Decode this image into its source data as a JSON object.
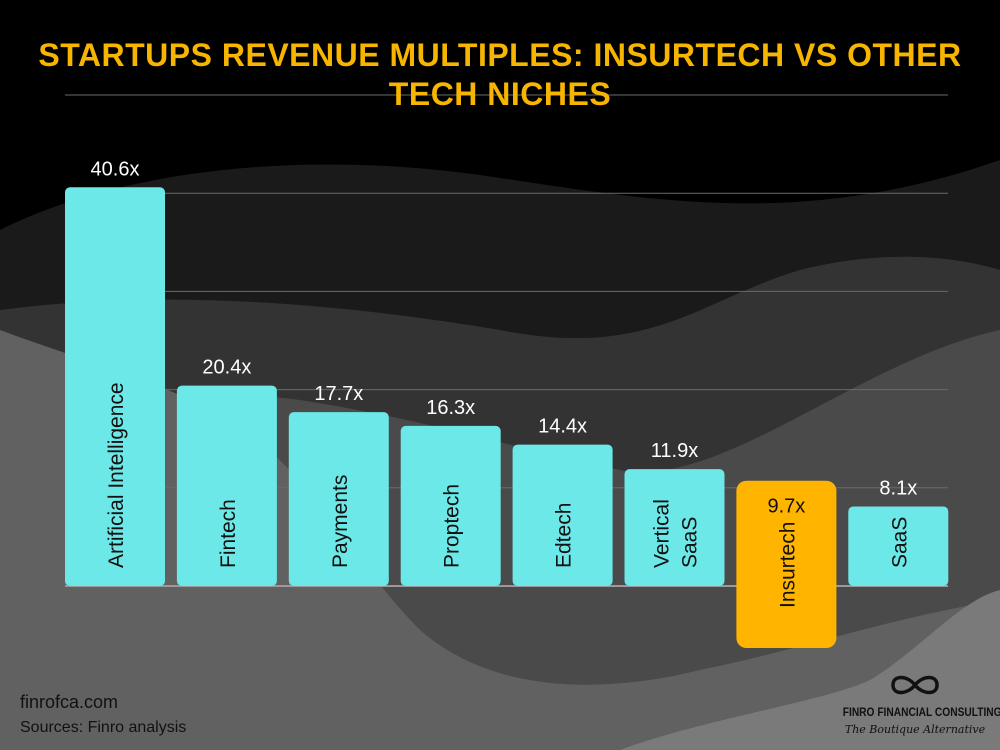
{
  "title": "STARTUPS REVENUE MULTIPLES: INSURTECH VS OTHER TECH NICHES",
  "footer": {
    "website": "finrofca.com",
    "sources": "Sources: Finro analysis"
  },
  "logo": {
    "name": "FINRO FINANCIAL CONSULTING",
    "tagline": "The Boutique Alternative",
    "icon": "infinity-icon"
  },
  "colors": {
    "bar": "#6ce8e8",
    "highlight": "#ffb400",
    "title": "#f7b500"
  },
  "chart_data": {
    "type": "bar",
    "title": "STARTUPS REVENUE MULTIPLES: INSURTECH VS OTHER TECH NICHES",
    "categories": [
      "Artificial Intelligence",
      "Fintech",
      "Payments",
      "Proptech",
      "Edtech",
      "Vertical SaaS",
      "Insurtech",
      "SaaS"
    ],
    "values": [
      40.6,
      20.4,
      17.7,
      16.3,
      14.4,
      11.9,
      9.7,
      8.1
    ],
    "labels": [
      "40.6x",
      "20.4x",
      "17.7x",
      "16.3x",
      "14.4x",
      "11.9x",
      "9.7x",
      "8.1x"
    ],
    "highlight": "Insurtech",
    "ylim": [
      0,
      50
    ],
    "grid": true,
    "xlabel": "",
    "ylabel": ""
  }
}
